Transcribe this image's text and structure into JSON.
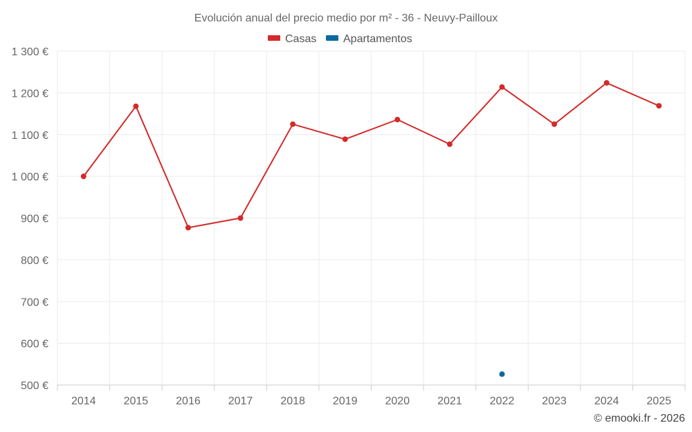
{
  "chart_data": {
    "type": "line",
    "title": "Evolución anual del precio medio por m² - 36 - Neuvy-Pailloux",
    "categories": [
      "2014",
      "2015",
      "2016",
      "2017",
      "2018",
      "2019",
      "2020",
      "2021",
      "2022",
      "2023",
      "2024",
      "2025"
    ],
    "series": [
      {
        "name": "Casas",
        "color": "#d32a2a",
        "values": [
          1000,
          1168,
          877,
          900,
          1125,
          1089,
          1136,
          1077,
          1214,
          1125,
          1224,
          1169
        ]
      },
      {
        "name": "Apartamentos",
        "color": "#0b6aa2",
        "values": [
          null,
          null,
          null,
          null,
          null,
          null,
          null,
          null,
          526,
          null,
          null,
          null
        ]
      }
    ],
    "ylim": [
      500,
      1300
    ],
    "yticks": [
      500,
      600,
      700,
      800,
      900,
      1000,
      1100,
      1200,
      1300
    ],
    "ytick_labels": [
      "500 €",
      "600 €",
      "700 €",
      "800 €",
      "900 €",
      "1 000 €",
      "1 100 €",
      "1 200 €",
      "1 300 €"
    ],
    "xlabel": "",
    "ylabel": "",
    "grid": true,
    "legend_position": "top-center"
  },
  "credit": "© emooki.fr - 2026"
}
